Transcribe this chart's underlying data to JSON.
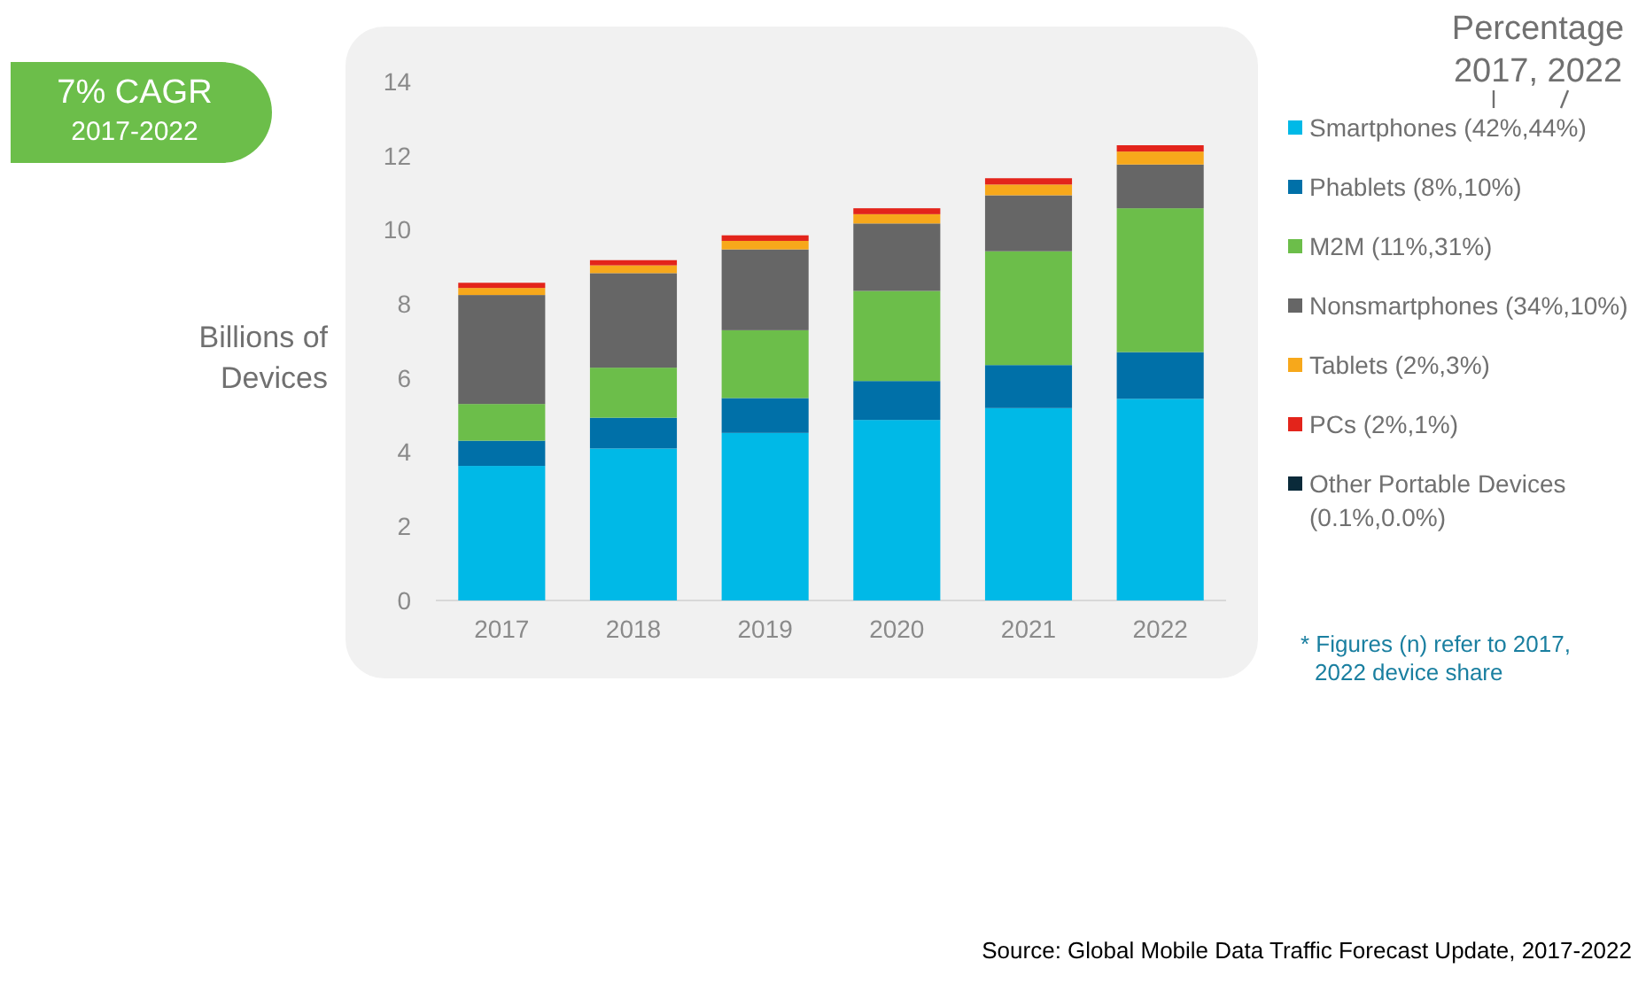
{
  "chart_data": {
    "type": "bar",
    "stacked": true,
    "ylabel": "Billions of Devices",
    "legend_title": "Percentage\n2017, 2022",
    "legend": "right",
    "grid": false,
    "categories": [
      "2017",
      "2018",
      "2019",
      "2020",
      "2021",
      "2022"
    ],
    "ylim": [
      0,
      14
    ],
    "yticks": [
      0,
      2,
      4,
      6,
      8,
      10,
      12,
      14
    ],
    "series": [
      {
        "name": "Smartphones (42%,44%)",
        "color": "#00b9e7",
        "values": [
          3.63,
          4.1,
          4.52,
          4.87,
          5.19,
          5.44
        ]
      },
      {
        "name": "Phablets (8%,10%)",
        "color": "#0070a8",
        "values": [
          0.68,
          0.83,
          0.94,
          1.05,
          1.16,
          1.26
        ]
      },
      {
        "name": "M2M (11%,31%)",
        "color": "#6cbe4a",
        "values": [
          0.99,
          1.35,
          1.83,
          2.43,
          3.07,
          3.88
        ]
      },
      {
        "name": "Nonsmartphones (34%,10%)",
        "color": "#666666",
        "values": [
          2.94,
          2.55,
          2.18,
          1.82,
          1.51,
          1.18
        ]
      },
      {
        "name": "Tablets (2%,3%)",
        "color": "#f7a81b",
        "values": [
          0.19,
          0.21,
          0.23,
          0.25,
          0.29,
          0.35
        ]
      },
      {
        "name": "PCs (2%,1%)",
        "color": "#e3241b",
        "values": [
          0.14,
          0.14,
          0.15,
          0.16,
          0.17,
          0.17
        ]
      },
      {
        "name": "Other Portable Devices (0.1%,0.0%)",
        "color": "#0a2a3a",
        "values": [
          null,
          null,
          null,
          null,
          null,
          null
        ]
      }
    ],
    "annotations": [
      "7% CAGR\n2017-2022",
      "* Figures (n) refer to 2017,\n2022 device share",
      "Source: Global Mobile Data Traffic Forecast Update, 2017-2022"
    ]
  }
}
